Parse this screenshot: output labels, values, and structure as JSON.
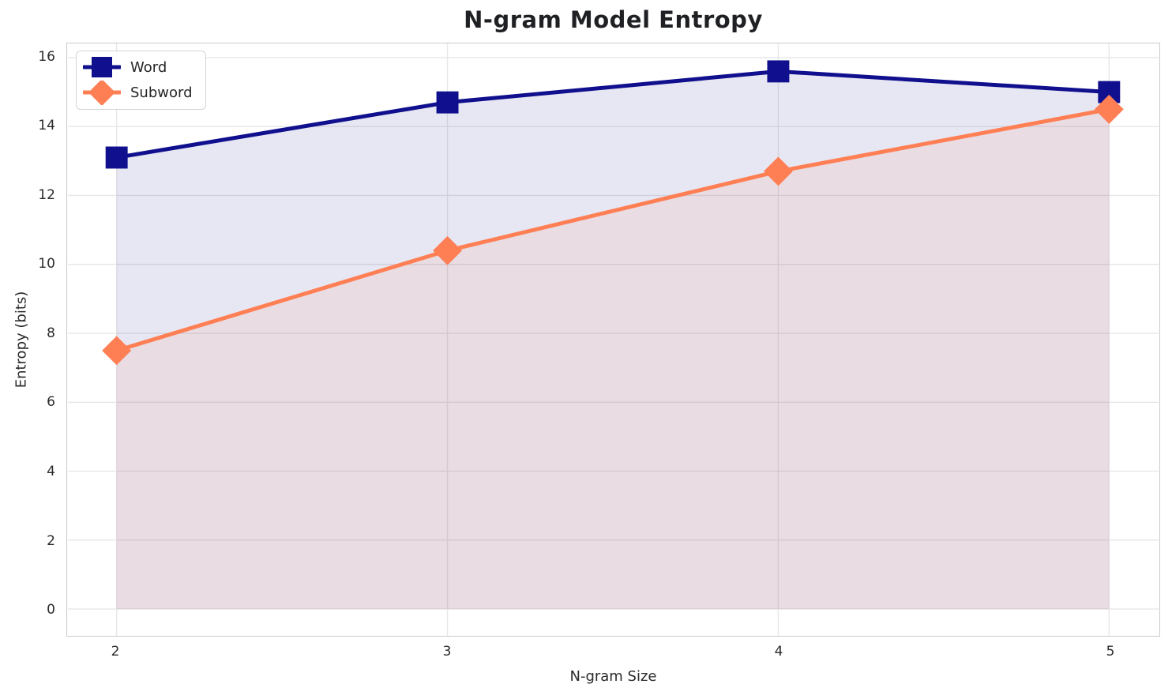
{
  "chart_data": {
    "type": "line",
    "title": "N-gram Model Entropy",
    "xlabel": "N-gram Size",
    "ylabel": "Entropy (bits)",
    "x": [
      2,
      3,
      4,
      5
    ],
    "series": [
      {
        "name": "Word",
        "values": [
          13.1,
          14.7,
          15.6,
          15.0
        ],
        "color": "#10108e",
        "marker": "square",
        "fill_alpha": 0.1
      },
      {
        "name": "Subword",
        "values": [
          7.5,
          10.4,
          12.7,
          14.5
        ],
        "color": "#ff7f55",
        "marker": "diamond",
        "fill_alpha": 0.1
      }
    ],
    "xticks": [
      2,
      3,
      4,
      5
    ],
    "xtick_labels": [
      "2",
      "3",
      "4",
      "5"
    ],
    "yticks": [
      0,
      2,
      4,
      6,
      8,
      10,
      12,
      14,
      16
    ],
    "ytick_labels": [
      "0",
      "2",
      "4",
      "6",
      "8",
      "10",
      "12",
      "14",
      "16"
    ],
    "xlim": [
      1.8524,
      5.15
    ],
    "ylim": [
      -0.777,
      16.411
    ],
    "fill_baseline": 0,
    "grid": true,
    "legend_position": "upper-left"
  },
  "colors": {
    "grid": "#e7e7e7",
    "spine": "#cbcbcb",
    "text": "#2b2b2b",
    "background": "#ffffff"
  }
}
